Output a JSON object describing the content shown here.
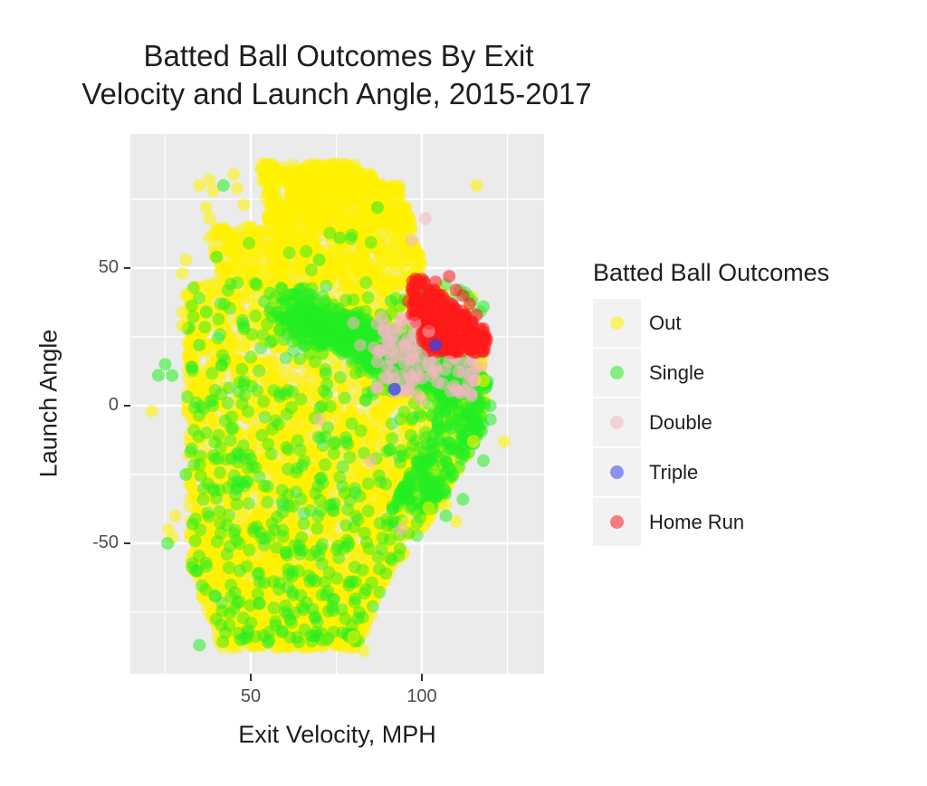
{
  "chart_data": {
    "type": "scatter",
    "title": "Batted Ball Outcomes By Exit Velocity and Launch Angle, 2015-2017",
    "title_lines": [
      "Batted Ball Outcomes By Exit",
      "Velocity and Launch Angle, 2015-2017"
    ],
    "xlabel": "Exit Velocity, MPH",
    "ylabel": "Launch Angle",
    "xlim": [
      11,
      132
    ],
    "ylim": [
      -97,
      99
    ],
    "x_ticks": [
      50,
      100
    ],
    "y_ticks": [
      -50,
      0,
      50
    ],
    "x_minor_grid": [
      25,
      75,
      125
    ],
    "y_minor_grid": [
      -75,
      -25,
      25,
      75
    ],
    "grid": true,
    "legend_position": "right",
    "legend": {
      "title": "Batted Ball Outcomes",
      "entries": [
        {
          "label": "Out",
          "color": "#FFF200"
        },
        {
          "label": "Single",
          "color": "#22EE22"
        },
        {
          "label": "Double",
          "color": "#F4B6C2"
        },
        {
          "label": "Triple",
          "color": "#3344EE"
        },
        {
          "label": "Home Run",
          "color": "#FF1A1A"
        }
      ]
    },
    "series": [
      {
        "name": "Out",
        "color": "#FFF200",
        "description": "Dense cloud covering ~EV 28-118 MPH, launch angle -90 to 90; heavy concentration at high launch angles (50-90) for EV 55-95 and at negative angles for EV 35-95",
        "points": [
          [
            21,
            -2
          ],
          [
            26,
            -45
          ],
          [
            28,
            -40
          ],
          [
            27,
            -48
          ],
          [
            35,
            80
          ],
          [
            38,
            82
          ],
          [
            39,
            78
          ],
          [
            37,
            72
          ],
          [
            38,
            68
          ],
          [
            45,
            84
          ],
          [
            46,
            79
          ],
          [
            48,
            73
          ],
          [
            55,
            86
          ],
          [
            58,
            82
          ],
          [
            30,
            48
          ],
          [
            31,
            40
          ],
          [
            30,
            34
          ],
          [
            30,
            29
          ],
          [
            31,
            53
          ],
          [
            38,
            61
          ],
          [
            116,
            80
          ],
          [
            124,
            -13
          ],
          [
            115,
            -13
          ],
          [
            83,
            -89
          ],
          [
            72,
            -85
          ],
          [
            80,
            -84
          ],
          [
            58,
            -88
          ],
          [
            95,
            -43
          ],
          [
            107,
            -36
          ],
          [
            110,
            -42
          ],
          [
            102,
            -37
          ],
          [
            117,
            15
          ],
          [
            118,
            9
          ]
        ],
        "cluster": {
          "x_range": [
            28,
            118
          ],
          "y_range": [
            -90,
            90
          ]
        }
      },
      {
        "name": "Single",
        "color": "#22EE22",
        "description": "Scattered throughout; dense band from (EV 60, LA 35) descending to (EV 110, LA 10); also many points at negative angles",
        "points": [
          [
            25.7,
            -50
          ],
          [
            23,
            11
          ],
          [
            25,
            15
          ],
          [
            27,
            11
          ],
          [
            35,
            -87
          ],
          [
            47,
            -85
          ],
          [
            55,
            -86
          ],
          [
            72,
            -85
          ],
          [
            87,
            72
          ],
          [
            76,
            61
          ],
          [
            70,
            53
          ],
          [
            91,
            38
          ],
          [
            118,
            36
          ],
          [
            42,
            80
          ],
          [
            37,
            34
          ],
          [
            40,
            54
          ],
          [
            35,
            22
          ],
          [
            31,
            -25
          ],
          [
            33,
            -43
          ],
          [
            34,
            -60
          ],
          [
            120,
            0
          ],
          [
            120,
            -5
          ],
          [
            118,
            -20
          ],
          [
            112,
            -34
          ],
          [
            107,
            -40
          ]
        ],
        "band": {
          "from": [
            60,
            35
          ],
          "to": [
            112,
            8
          ]
        }
      },
      {
        "name": "Double",
        "color": "#F4B6C2",
        "description": "Mostly EV 85-120, launch angle 5-35, interspersed with singles and home runs",
        "points": [
          [
            88,
            20
          ],
          [
            92,
            26
          ],
          [
            95,
            22
          ],
          [
            100,
            18
          ],
          [
            104,
            14
          ],
          [
            108,
            16
          ],
          [
            112,
            12
          ],
          [
            116,
            14
          ],
          [
            98,
            30
          ],
          [
            102,
            27
          ],
          [
            90,
            10
          ],
          [
            96,
            6
          ],
          [
            100,
            2
          ],
          [
            106,
            8
          ],
          [
            97,
            60
          ],
          [
            101,
            68
          ],
          [
            94,
            -45
          ],
          [
            85,
            -20
          ],
          [
            70,
            -5
          ],
          [
            80,
            30
          ],
          [
            82,
            22
          ]
        ]
      },
      {
        "name": "Triple",
        "color": "#3344EE",
        "description": "Very few points",
        "points": [
          [
            104,
            22
          ],
          [
            92,
            6
          ]
        ]
      },
      {
        "name": "Home Run",
        "color": "#FF1A1A",
        "description": "Tight cluster at EV ~95-120 MPH, launch angle ~18-47",
        "points": [
          [
            98,
            44
          ],
          [
            100,
            46
          ],
          [
            104,
            45
          ],
          [
            108,
            47
          ],
          [
            110,
            42
          ],
          [
            112,
            40
          ],
          [
            114,
            37
          ],
          [
            116,
            33
          ],
          [
            118,
            28
          ],
          [
            119,
            24
          ],
          [
            117,
            22
          ],
          [
            114,
            21
          ],
          [
            110,
            24
          ],
          [
            106,
            28
          ],
          [
            102,
            30
          ],
          [
            98,
            33
          ],
          [
            96,
            38
          ],
          [
            100,
            38
          ],
          [
            104,
            36
          ],
          [
            108,
            34
          ],
          [
            112,
            30
          ],
          [
            106,
            40
          ],
          [
            110,
            35
          ],
          [
            114,
            27
          ]
        ],
        "cluster": {
          "x_range": [
            95,
            120
          ],
          "y_range": [
            18,
            47
          ]
        }
      }
    ]
  },
  "axes": {
    "x_tick_labels": [
      "50",
      "100"
    ],
    "y_tick_labels": [
      "50",
      "0",
      "-50"
    ]
  },
  "colors": {
    "panel_background": "#EBEBEB",
    "grid": "#FFFFFF",
    "legend_key_background": "#F2F2F2"
  }
}
